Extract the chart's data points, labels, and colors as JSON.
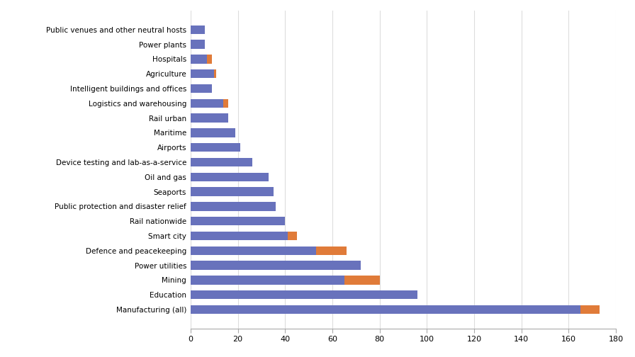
{
  "categories": [
    "Public venues and other neutral hosts",
    "Power plants",
    "Hospitals",
    "Agriculture",
    "Intelligent buildings and offices",
    "Logistics and warehousing",
    "Rail urban",
    "Maritime",
    "Airports",
    "Device testing and lab-as-a-service",
    "Oil and gas",
    "Seaports",
    "Public protection and disaster relief",
    "Rail nationwide",
    "Smart city",
    "Defence and peacekeeping",
    "Power utilities",
    "Mining",
    "Education",
    "Manufacturing (all)"
  ],
  "blue_values": [
    6,
    6,
    7,
    10,
    9,
    14,
    16,
    19,
    21,
    26,
    33,
    35,
    36,
    40,
    41,
    53,
    72,
    65,
    96,
    165
  ],
  "orange_values": [
    0,
    0,
    2,
    1,
    0,
    2,
    0,
    0,
    0,
    0,
    0,
    0,
    0,
    0,
    4,
    13,
    0,
    15,
    0,
    8
  ],
  "blue_color": "#6872bc",
  "orange_color": "#e07b39",
  "background_color": "#ffffff",
  "xlim": [
    0,
    180
  ],
  "xticks": [
    0,
    20,
    40,
    60,
    80,
    100,
    120,
    140,
    160,
    180
  ],
  "bar_height": 0.6,
  "figsize": [
    8.96,
    5.04
  ],
  "dpi": 100
}
